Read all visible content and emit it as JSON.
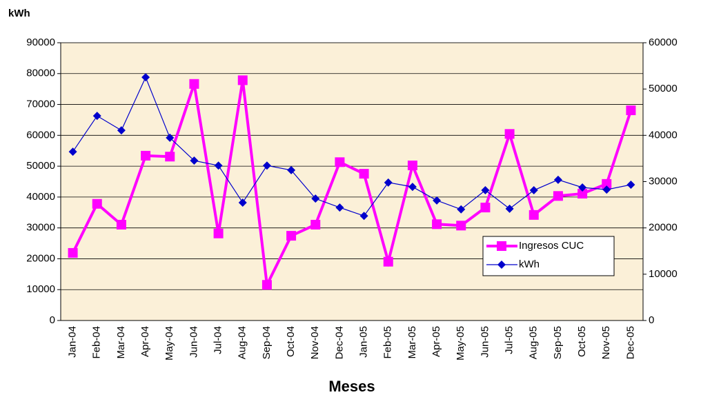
{
  "chart_data": {
    "type": "line",
    "y_label": "kWh",
    "x_label": "Meses",
    "categories": [
      "Jan-04",
      "Feb-04",
      "Mar-04",
      "Apr-04",
      "May-04",
      "Jun-04",
      "Jul-04",
      "Aug-04",
      "Sep-04",
      "Oct-04",
      "Nov-04",
      "Dec-04",
      "Jan-05",
      "Feb-05",
      "Mar-05",
      "Apr-05",
      "May-05",
      "Jun-05",
      "Jul-05",
      "Aug-05",
      "Sep-05",
      "Oct-05",
      "Nov-05",
      "Dec-05"
    ],
    "series": [
      {
        "name": "Ingresos CUC",
        "color": "#ff00ff",
        "axis": "y2",
        "marker": "square",
        "values": [
          14600,
          25200,
          20700,
          35600,
          35400,
          51100,
          18800,
          51900,
          7700,
          18300,
          20700,
          34200,
          31700,
          12700,
          33500,
          20800,
          20500,
          24400,
          40300,
          22800,
          26900,
          27400,
          29500,
          45400
        ]
      },
      {
        "name": "kWh",
        "color": "#0000cc",
        "marker": "diamond",
        "values": [
          54700,
          66300,
          61600,
          78800,
          59200,
          51800,
          50200,
          38200,
          50200,
          48700,
          39500,
          36600,
          33900,
          44700,
          43300,
          38900,
          36000,
          42200,
          36200,
          42200,
          45600,
          43100,
          42400,
          44000
        ]
      }
    ],
    "ylim": [
      0,
      90000
    ],
    "yticks": [
      0,
      10000,
      20000,
      30000,
      40000,
      50000,
      60000,
      70000,
      80000,
      90000
    ],
    "y2lim": [
      0,
      60000
    ],
    "y2ticks": [
      0,
      10000,
      20000,
      30000,
      40000,
      50000,
      60000
    ],
    "grid": true,
    "plot_background": "#fbf0d8",
    "legend_position": "right"
  }
}
